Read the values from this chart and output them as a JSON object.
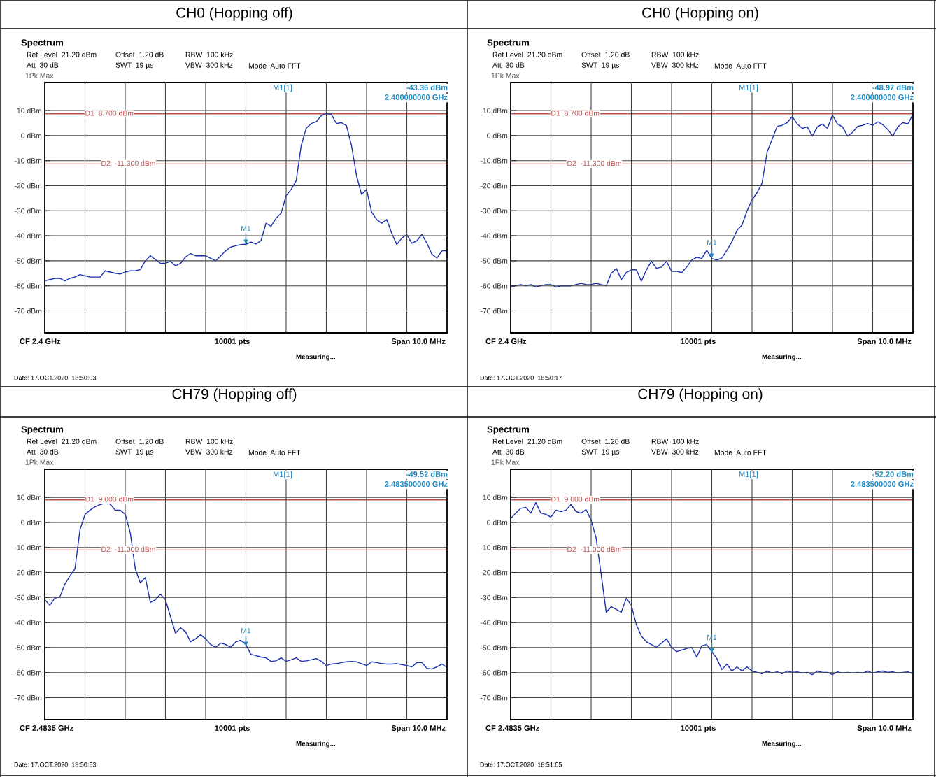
{
  "chart_data": [
    {
      "type": "line",
      "title": "CH0 (Hopping off)",
      "categories": [
        null,
        null,
        null,
        null,
        null,
        null,
        null,
        null,
        null,
        null,
        null,
        null,
        null,
        null,
        null,
        null,
        null,
        null,
        null,
        null,
        null,
        null,
        null,
        null,
        null,
        null,
        null,
        null,
        null,
        null,
        null,
        null,
        null,
        null,
        null,
        null,
        null,
        null,
        null,
        null,
        null,
        null,
        null,
        null,
        null,
        null,
        null,
        null,
        null,
        null,
        null,
        null,
        null,
        null,
        null,
        null,
        null,
        null,
        null,
        null,
        null,
        null,
        null,
        null,
        null,
        null,
        null,
        null,
        null,
        null,
        null,
        null,
        null,
        null,
        null,
        null,
        null,
        null,
        null,
        null,
        null
      ],
      "series": [
        {
          "color": "#1a2fb0",
          "values": [
            -58,
            -57.5,
            -57,
            -57,
            -58,
            -57,
            -56.5,
            -55.5,
            -56,
            -56.5,
            -56.5,
            -56.5,
            -54,
            -54.5,
            -55,
            -55.3,
            -54.5,
            -54,
            -54,
            -53.5,
            -50,
            -48,
            -49.5,
            -51,
            -51,
            -50.2,
            -52,
            -51,
            -48.5,
            -47.1,
            -48,
            -48,
            -48,
            -49,
            -50,
            -48,
            -46,
            -44.5,
            -44,
            -43.5,
            -43.4,
            -42.5,
            -43.3,
            -42,
            -35,
            -36.2,
            -33,
            -31,
            -24,
            -21.5,
            -18,
            -4,
            3,
            4.8,
            5.5,
            8,
            8.8,
            8.5,
            4.8,
            5.2,
            4,
            -4,
            -16,
            -23.5,
            -21.5,
            -30.5,
            -33.5,
            -35,
            -33.5,
            -39,
            -43.5,
            -41,
            -39.5,
            -43,
            -42,
            -39.5,
            -43,
            -47.4,
            -48.9,
            -46,
            -46
          ]
        }
      ],
      "ylim": [
        -78.8,
        21.2
      ],
      "yticks": [
        {
          "value": 10,
          "label": "10 dBm"
        },
        {
          "value": 0,
          "label": "0 dBm"
        },
        {
          "value": -10,
          "label": "-10 dBm"
        },
        {
          "value": -20,
          "label": "-20 dBm"
        },
        {
          "value": -30,
          "label": "-30 dBm"
        },
        {
          "value": -40,
          "label": "-40 dBm"
        },
        {
          "value": -50,
          "label": "-50 dBm"
        },
        {
          "value": -60,
          "label": "-60 dBm"
        },
        {
          "value": -70,
          "label": "-70 dBm"
        }
      ],
      "grid": true,
      "marker": "none",
      "line_style": "solid",
      "ref_lines": [
        {
          "axis": "y",
          "value": 8.7,
          "label": "D1  8.700 dBm",
          "color": "#c0504d"
        },
        {
          "axis": "y",
          "value": -11.3,
          "label": "D2  -11.300 dBm",
          "color": "#e8a0a0"
        }
      ],
      "annotations": [
        "Spectrum",
        "Ref Level  21.20 dBm",
        "Offset  1.20 dB",
        "RBW  100 kHz",
        "Att  30 dB",
        "SWT  19 µs",
        "VBW  300 kHz",
        "Mode  Auto FFT",
        "1Pk Max",
        "M1[1]",
        "-43.36 dBm",
        "2.400000000 GHz",
        "CF 2.4 GHz",
        "10001 pts",
        "Span 10.0 MHz",
        "Measuring...",
        "Date: 17.OCT.2020  18:50:03",
        {
          "text": "M1",
          "y": -43.36
        }
      ]
    },
    {
      "type": "line",
      "title": "CH0 (Hopping on)",
      "categories": [
        null,
        null,
        null,
        null,
        null,
        null,
        null,
        null,
        null,
        null,
        null,
        null,
        null,
        null,
        null,
        null,
        null,
        null,
        null,
        null,
        null,
        null,
        null,
        null,
        null,
        null,
        null,
        null,
        null,
        null,
        null,
        null,
        null,
        null,
        null,
        null,
        null,
        null,
        null,
        null,
        null,
        null,
        null,
        null,
        null,
        null,
        null,
        null,
        null,
        null,
        null,
        null,
        null,
        null,
        null,
        null,
        null,
        null,
        null,
        null,
        null,
        null,
        null,
        null,
        null,
        null,
        null,
        null,
        null,
        null,
        null,
        null,
        null,
        null,
        null,
        null,
        null,
        null,
        null,
        null,
        null
      ],
      "series": [
        {
          "color": "#1a2fb0",
          "values": [
            -60.5,
            -60,
            -59.5,
            -60,
            -59.5,
            -60.5,
            -60,
            -59.5,
            -59.5,
            -60.5,
            -60,
            -60,
            -60,
            -59.5,
            -59,
            -59.5,
            -59.5,
            -59,
            -59.5,
            -60,
            -55,
            -53,
            -57.5,
            -54.7,
            -53.6,
            -53.6,
            -58.1,
            -53.6,
            -50.2,
            -53,
            -52.5,
            -50.2,
            -54.2,
            -54.2,
            -54.7,
            -52.5,
            -49.7,
            -48.6,
            -49.1,
            -45.8,
            -49.1,
            -49.7,
            -48.9,
            -45.8,
            -42.4,
            -37.9,
            -35.7,
            -30.1,
            -25.6,
            -22.8,
            -18.9,
            -6.6,
            -1.5,
            3.7,
            4.1,
            5.2,
            7.6,
            4.6,
            2.9,
            3.5,
            -0.2,
            3.5,
            4.6,
            2.9,
            8.2,
            4.6,
            3.5,
            -0.2,
            1.3,
            3.7,
            4.1,
            4.8,
            4.1,
            5.5,
            4.4,
            2.4,
            -0.2,
            3.5,
            5.2,
            4.6,
            8.5
          ]
        }
      ],
      "ylim": [
        -78.8,
        21.2
      ],
      "yticks": [
        {
          "value": 10,
          "label": "10 dBm"
        },
        {
          "value": 0,
          "label": "0 dBm"
        },
        {
          "value": -10,
          "label": "-10 dBm"
        },
        {
          "value": -20,
          "label": "-20 dBm"
        },
        {
          "value": -30,
          "label": "-30 dBm"
        },
        {
          "value": -40,
          "label": "-40 dBm"
        },
        {
          "value": -50,
          "label": "-50 dBm"
        },
        {
          "value": -60,
          "label": "-60 dBm"
        },
        {
          "value": -70,
          "label": "-70 dBm"
        }
      ],
      "grid": true,
      "marker": "none",
      "line_style": "solid",
      "ref_lines": [
        {
          "axis": "y",
          "value": 8.7,
          "label": "D1  8.700 dBm",
          "color": "#c0504d"
        },
        {
          "axis": "y",
          "value": -11.3,
          "label": "D2  -11.300 dBm",
          "color": "#e8a0a0"
        }
      ],
      "annotations": [
        "Spectrum",
        "Ref Level  21.20 dBm",
        "Offset  1.20 dB",
        "RBW  100 kHz",
        "Att  30 dB",
        "SWT  19 µs",
        "VBW  300 kHz",
        "Mode  Auto FFT",
        "1Pk Max",
        "M1[1]",
        "-48.97 dBm",
        "2.400000000 GHz",
        "CF 2.4 GHz",
        "10001 pts",
        "Span 10.0 MHz",
        "Measuring...",
        "Date: 17.OCT.2020  18:50:17",
        {
          "text": "M1",
          "y": -48.97
        }
      ]
    },
    {
      "type": "line",
      "title": "CH79 (Hopping off)",
      "categories": [
        null,
        null,
        null,
        null,
        null,
        null,
        null,
        null,
        null,
        null,
        null,
        null,
        null,
        null,
        null,
        null,
        null,
        null,
        null,
        null,
        null,
        null,
        null,
        null,
        null,
        null,
        null,
        null,
        null,
        null,
        null,
        null,
        null,
        null,
        null,
        null,
        null,
        null,
        null,
        null,
        null,
        null,
        null,
        null,
        null,
        null,
        null,
        null,
        null,
        null,
        null,
        null,
        null,
        null,
        null,
        null,
        null,
        null,
        null,
        null,
        null,
        null,
        null,
        null,
        null,
        null,
        null,
        null,
        null,
        null,
        null,
        null,
        null,
        null,
        null,
        null,
        null,
        null,
        null,
        null,
        null
      ],
      "series": [
        {
          "color": "#1a2fb0",
          "values": [
            -30.9,
            -33.1,
            -30.3,
            -29.8,
            -24.7,
            -21.4,
            -18.6,
            -3,
            3.2,
            4.9,
            6.2,
            7.1,
            7.7,
            7.3,
            4.9,
            4.9,
            3.2,
            -4.1,
            -18.6,
            -24.2,
            -22,
            -32,
            -30.9,
            -28.7,
            -30.9,
            -37.6,
            -44.3,
            -42.1,
            -43.7,
            -47.7,
            -46.5,
            -44.9,
            -46.5,
            -48.8,
            -49.9,
            -48.2,
            -48.8,
            -49.9,
            -47.7,
            -47.1,
            -48.8,
            -52.7,
            -53.2,
            -53.8,
            -54.1,
            -55.5,
            -55.3,
            -54.1,
            -55.5,
            -54.9,
            -54.1,
            -55.5,
            -55.3,
            -54.9,
            -54.4,
            -55.5,
            -57.2,
            -56.6,
            -56.4,
            -56,
            -55.7,
            -55.5,
            -55.7,
            -56.4,
            -57.2,
            -55.7,
            -56,
            -56.4,
            -56.6,
            -56.6,
            -56.4,
            -56.8,
            -57.2,
            -57.7,
            -56,
            -56,
            -58.3,
            -58.6,
            -57.7,
            -56.6,
            -57.9
          ]
        }
      ],
      "ylim": [
        -78.8,
        21.2
      ],
      "yticks": [
        {
          "value": 10,
          "label": "10 dBm"
        },
        {
          "value": 0,
          "label": "0 dBm"
        },
        {
          "value": -10,
          "label": "-10 dBm"
        },
        {
          "value": -20,
          "label": "-20 dBm"
        },
        {
          "value": -30,
          "label": "-30 dBm"
        },
        {
          "value": -40,
          "label": "-40 dBm"
        },
        {
          "value": -50,
          "label": "-50 dBm"
        },
        {
          "value": -60,
          "label": "-60 dBm"
        },
        {
          "value": -70,
          "label": "-70 dBm"
        }
      ],
      "grid": true,
      "marker": "none",
      "line_style": "solid",
      "ref_lines": [
        {
          "axis": "y",
          "value": 9.0,
          "label": "D1  9.000 dBm",
          "color": "#c0504d"
        },
        {
          "axis": "y",
          "value": -11.0,
          "label": "D2  -11.000 dBm",
          "color": "#e8a0a0"
        }
      ],
      "annotations": [
        "Spectrum",
        "Ref Level  21.20 dBm",
        "Offset  1.20 dB",
        "RBW  100 kHz",
        "Att  30 dB",
        "SWT  19 µs",
        "VBW  300 kHz",
        "Mode  Auto FFT",
        "1Pk Max",
        "M1[1]",
        "-49.52 dBm",
        "2.483500000 GHz",
        "CF 2.4835 GHz",
        "10001 pts",
        "Span 10.0 MHz",
        "Measuring...",
        "Date: 17.OCT.2020  18:50:53",
        {
          "text": "M1",
          "y": -49.52
        }
      ]
    },
    {
      "type": "line",
      "title": "CH79 (Hopping on)",
      "categories": [
        null,
        null,
        null,
        null,
        null,
        null,
        null,
        null,
        null,
        null,
        null,
        null,
        null,
        null,
        null,
        null,
        null,
        null,
        null,
        null,
        null,
        null,
        null,
        null,
        null,
        null,
        null,
        null,
        null,
        null,
        null,
        null,
        null,
        null,
        null,
        null,
        null,
        null,
        null,
        null,
        null,
        null,
        null,
        null,
        null,
        null,
        null,
        null,
        null,
        null,
        null,
        null,
        null,
        null,
        null,
        null,
        null,
        null,
        null,
        null,
        null,
        null,
        null,
        null,
        null,
        null,
        null,
        null,
        null,
        null,
        null,
        null,
        null,
        null,
        null,
        null,
        null,
        null,
        null,
        null,
        null
      ],
      "series": [
        {
          "color": "#1a2fb0",
          "values": [
            1.5,
            3.7,
            5.6,
            6,
            3.7,
            7.9,
            3.7,
            3.2,
            2.1,
            4.9,
            4.3,
            4.9,
            7.1,
            4.3,
            3.7,
            5.1,
            0.9,
            -6.3,
            -20.8,
            -35.9,
            -33.7,
            -34.8,
            -35.9,
            -30.3,
            -33.1,
            -40.9,
            -45.4,
            -47.7,
            -48.8,
            -49.9,
            -48.2,
            -46.5,
            -49.9,
            -51.6,
            -51,
            -50.4,
            -49.9,
            -53.8,
            -49.3,
            -48.8,
            -51.6,
            -54.4,
            -58.8,
            -56.6,
            -59.4,
            -57.7,
            -59.4,
            -57.7,
            -59.4,
            -59.9,
            -60.5,
            -59.4,
            -60.2,
            -59.7,
            -60.5,
            -59.4,
            -59.9,
            -59.7,
            -60.2,
            -59.9,
            -60.8,
            -59.4,
            -59.9,
            -59.9,
            -60.8,
            -59.7,
            -60.2,
            -59.9,
            -60.2,
            -59.9,
            -60.2,
            -59.4,
            -60.2,
            -59.7,
            -59.4,
            -59.9,
            -59.7,
            -60.2,
            -59.9,
            -59.7,
            -60.5
          ]
        }
      ],
      "ylim": [
        -78.8,
        21.2
      ],
      "yticks": [
        {
          "value": 10,
          "label": "10 dBm"
        },
        {
          "value": 0,
          "label": "0 dBm"
        },
        {
          "value": -10,
          "label": "-10 dBm"
        },
        {
          "value": -20,
          "label": "-20 dBm"
        },
        {
          "value": -30,
          "label": "-30 dBm"
        },
        {
          "value": -40,
          "label": "-40 dBm"
        },
        {
          "value": -50,
          "label": "-50 dBm"
        },
        {
          "value": -60,
          "label": "-60 dBm"
        },
        {
          "value": -70,
          "label": "-70 dBm"
        }
      ],
      "grid": true,
      "marker": "none",
      "line_style": "solid",
      "ref_lines": [
        {
          "axis": "y",
          "value": 9.0,
          "label": "D1  9.000 dBm",
          "color": "#c0504d"
        },
        {
          "axis": "y",
          "value": -11.0,
          "label": "D2  -11.000 dBm",
          "color": "#e8a0a0"
        }
      ],
      "annotations": [
        "Spectrum",
        "Ref Level  21.20 dBm",
        "Offset  1.20 dB",
        "RBW  100 kHz",
        "Att  30 dB",
        "SWT  19 µs",
        "VBW  300 kHz",
        "Mode  Auto FFT",
        "1Pk Max",
        "M1[1]",
        "-52.20 dBm",
        "2.483500000 GHz",
        "CF 2.4835 GHz",
        "10001 pts",
        "Span 10.0 MHz",
        "Measuring...",
        "Date: 17.OCT.2020  18:51:05",
        {
          "text": "M1",
          "y": -52.2
        }
      ]
    }
  ]
}
